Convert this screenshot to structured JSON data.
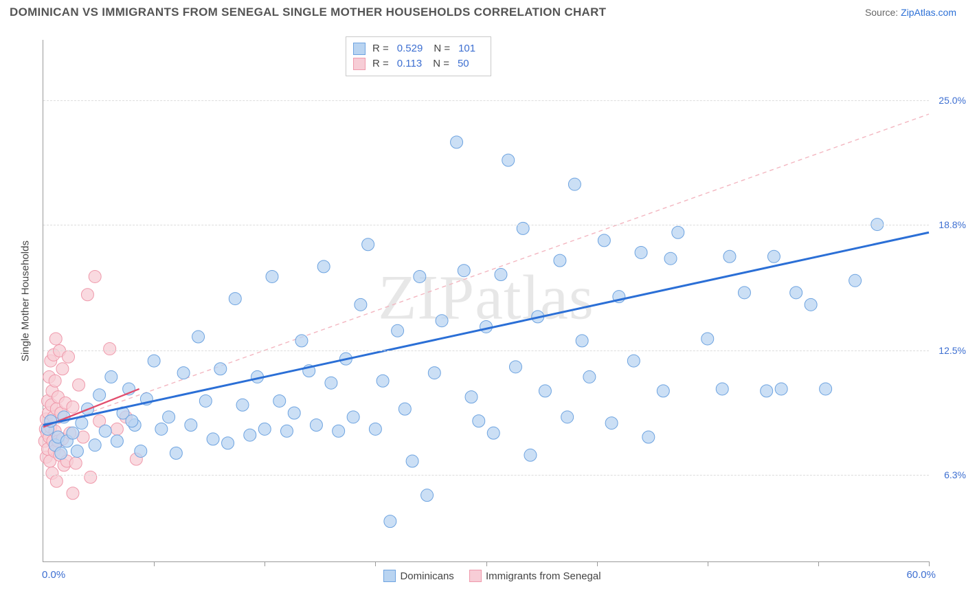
{
  "title": "DOMINICAN VS IMMIGRANTS FROM SENEGAL SINGLE MOTHER HOUSEHOLDS CORRELATION CHART",
  "source_prefix": "Source: ",
  "source_link": "ZipAtlas.com",
  "watermark": "ZIPatlas",
  "chart": {
    "type": "scatter",
    "y_axis_title": "Single Mother Households",
    "xlim": [
      0,
      60
    ],
    "ylim": [
      2,
      28
    ],
    "x_min_label": "0.0%",
    "x_max_label": "60.0%",
    "x_ticks": [
      7.5,
      15,
      22.5,
      30,
      37.5,
      45,
      52.5,
      60
    ],
    "y_gridlines": [
      {
        "y": 6.3,
        "label": "6.3%"
      },
      {
        "y": 12.5,
        "label": "12.5%"
      },
      {
        "y": 18.8,
        "label": "18.8%"
      },
      {
        "y": 25.0,
        "label": "25.0%"
      }
    ],
    "background_color": "#ffffff",
    "grid_color": "#dcdcdc",
    "series": [
      {
        "name": "Dominicans",
        "color_fill": "#b9d4f1",
        "color_stroke": "#6da3e0",
        "marker_radius": 9,
        "marker_opacity": 0.75,
        "r_value": "0.529",
        "n_value": "101",
        "trend_solid": {
          "x1": 0,
          "y1": 8.8,
          "x2": 60,
          "y2": 18.4,
          "color": "#2b6fd6",
          "width": 3
        },
        "trend_dashed": {
          "x1": 0,
          "y1": 8.6,
          "x2": 60,
          "y2": 24.3,
          "color": "#f3b6c0",
          "width": 1.4,
          "dash": "6,5"
        },
        "points": [
          [
            0.3,
            8.6
          ],
          [
            0.5,
            9.0
          ],
          [
            0.8,
            7.8
          ],
          [
            1.0,
            8.2
          ],
          [
            1.2,
            7.4
          ],
          [
            1.4,
            9.2
          ],
          [
            1.6,
            8.0
          ],
          [
            2.0,
            8.4
          ],
          [
            2.3,
            7.5
          ],
          [
            2.6,
            8.9
          ],
          [
            3.0,
            9.6
          ],
          [
            3.5,
            7.8
          ],
          [
            3.8,
            10.3
          ],
          [
            4.2,
            8.5
          ],
          [
            4.6,
            11.2
          ],
          [
            5.0,
            8.0
          ],
          [
            5.4,
            9.4
          ],
          [
            5.8,
            10.6
          ],
          [
            6.2,
            8.8
          ],
          [
            6.6,
            7.5
          ],
          [
            6.0,
            9.0
          ],
          [
            7.0,
            10.1
          ],
          [
            7.5,
            12.0
          ],
          [
            8.0,
            8.6
          ],
          [
            8.5,
            9.2
          ],
          [
            9.0,
            7.4
          ],
          [
            9.5,
            11.4
          ],
          [
            10.0,
            8.8
          ],
          [
            10.5,
            13.2
          ],
          [
            11.0,
            10.0
          ],
          [
            11.5,
            8.1
          ],
          [
            12.0,
            11.6
          ],
          [
            12.5,
            7.9
          ],
          [
            13.0,
            15.1
          ],
          [
            13.5,
            9.8
          ],
          [
            14.0,
            8.3
          ],
          [
            14.5,
            11.2
          ],
          [
            15.0,
            8.6
          ],
          [
            15.5,
            16.2
          ],
          [
            16.0,
            10.0
          ],
          [
            16.5,
            8.5
          ],
          [
            17.0,
            9.4
          ],
          [
            17.5,
            13.0
          ],
          [
            18.0,
            11.5
          ],
          [
            18.5,
            8.8
          ],
          [
            19.0,
            16.7
          ],
          [
            19.5,
            10.9
          ],
          [
            20.0,
            8.5
          ],
          [
            20.5,
            12.1
          ],
          [
            21.0,
            9.2
          ],
          [
            21.5,
            14.8
          ],
          [
            22.0,
            17.8
          ],
          [
            22.5,
            8.6
          ],
          [
            23.0,
            11.0
          ],
          [
            23.5,
            4.0
          ],
          [
            24.0,
            13.5
          ],
          [
            24.5,
            9.6
          ],
          [
            25.0,
            7.0
          ],
          [
            25.5,
            16.2
          ],
          [
            26.0,
            5.3
          ],
          [
            26.5,
            11.4
          ],
          [
            27.0,
            14.0
          ],
          [
            28.0,
            22.9
          ],
          [
            28.5,
            16.5
          ],
          [
            29.0,
            10.2
          ],
          [
            29.5,
            9.0
          ],
          [
            30.0,
            13.7
          ],
          [
            30.5,
            8.4
          ],
          [
            31.0,
            16.3
          ],
          [
            31.5,
            22.0
          ],
          [
            32.0,
            11.7
          ],
          [
            32.5,
            18.6
          ],
          [
            33.0,
            7.3
          ],
          [
            33.5,
            14.2
          ],
          [
            34.0,
            10.5
          ],
          [
            35.0,
            17.0
          ],
          [
            35.5,
            9.2
          ],
          [
            36.0,
            20.8
          ],
          [
            36.5,
            13.0
          ],
          [
            37.0,
            11.2
          ],
          [
            38.0,
            18.0
          ],
          [
            38.5,
            8.9
          ],
          [
            39.0,
            15.2
          ],
          [
            40.0,
            12.0
          ],
          [
            40.5,
            17.4
          ],
          [
            41.0,
            8.2
          ],
          [
            42.0,
            10.5
          ],
          [
            42.5,
            17.1
          ],
          [
            43.0,
            18.4
          ],
          [
            45.0,
            13.1
          ],
          [
            46.0,
            10.6
          ],
          [
            46.5,
            17.2
          ],
          [
            47.5,
            15.4
          ],
          [
            49.0,
            10.5
          ],
          [
            49.5,
            17.2
          ],
          [
            50.0,
            10.6
          ],
          [
            51.0,
            15.4
          ],
          [
            52.0,
            14.8
          ],
          [
            53.0,
            10.6
          ],
          [
            55.0,
            16.0
          ],
          [
            56.5,
            18.8
          ]
        ]
      },
      {
        "name": "Immigrants from Senegal",
        "color_fill": "#f7cdd6",
        "color_stroke": "#ef99ab",
        "marker_radius": 9,
        "marker_opacity": 0.75,
        "r_value": "0.113",
        "n_value": "50",
        "trend_solid": {
          "x1": 0,
          "y1": 8.7,
          "x2": 6.5,
          "y2": 10.6,
          "color": "#e24d6d",
          "width": 2.4
        },
        "points": [
          [
            0.1,
            8.0
          ],
          [
            0.15,
            8.6
          ],
          [
            0.2,
            7.2
          ],
          [
            0.2,
            9.1
          ],
          [
            0.25,
            8.4
          ],
          [
            0.3,
            10.0
          ],
          [
            0.3,
            7.6
          ],
          [
            0.35,
            9.4
          ],
          [
            0.4,
            8.2
          ],
          [
            0.4,
            11.2
          ],
          [
            0.45,
            7.0
          ],
          [
            0.5,
            12.0
          ],
          [
            0.5,
            8.7
          ],
          [
            0.55,
            9.8
          ],
          [
            0.6,
            6.4
          ],
          [
            0.6,
            10.5
          ],
          [
            0.65,
            8.0
          ],
          [
            0.7,
            12.3
          ],
          [
            0.7,
            9.2
          ],
          [
            0.75,
            7.5
          ],
          [
            0.8,
            11.0
          ],
          [
            0.8,
            8.5
          ],
          [
            0.85,
            13.1
          ],
          [
            0.9,
            9.6
          ],
          [
            0.9,
            6.0
          ],
          [
            1.0,
            10.2
          ],
          [
            1.0,
            8.0
          ],
          [
            1.1,
            12.5
          ],
          [
            1.1,
            7.3
          ],
          [
            1.2,
            9.4
          ],
          [
            1.3,
            11.6
          ],
          [
            1.3,
            8.1
          ],
          [
            1.4,
            6.8
          ],
          [
            1.5,
            9.9
          ],
          [
            1.6,
            7.0
          ],
          [
            1.7,
            12.2
          ],
          [
            1.8,
            8.4
          ],
          [
            2.0,
            5.4
          ],
          [
            2.0,
            9.7
          ],
          [
            2.2,
            6.9
          ],
          [
            2.4,
            10.8
          ],
          [
            2.7,
            8.2
          ],
          [
            3.0,
            15.3
          ],
          [
            3.2,
            6.2
          ],
          [
            3.5,
            16.2
          ],
          [
            3.8,
            9.0
          ],
          [
            4.5,
            12.6
          ],
          [
            5.0,
            8.6
          ],
          [
            5.6,
            9.2
          ],
          [
            6.3,
            7.1
          ]
        ]
      }
    ],
    "legend_bottom": [
      {
        "label": "Dominicans",
        "fill": "#b9d4f1",
        "stroke": "#6da3e0"
      },
      {
        "label": "Immigrants from Senegal",
        "fill": "#f7cdd6",
        "stroke": "#ef99ab"
      }
    ]
  }
}
